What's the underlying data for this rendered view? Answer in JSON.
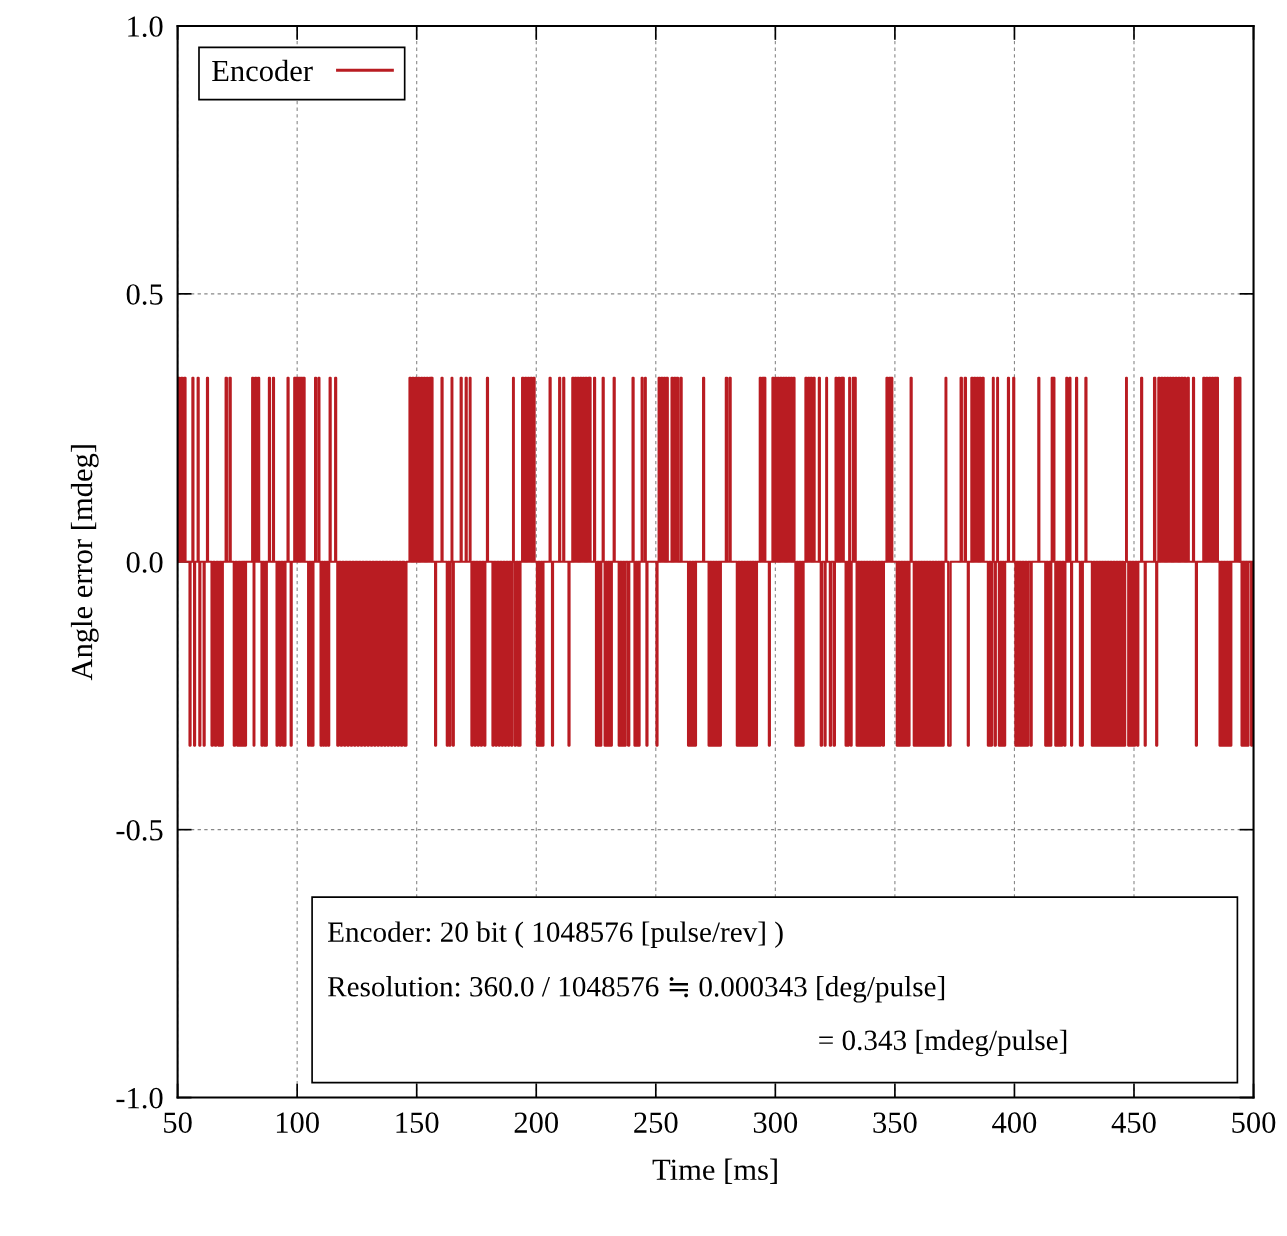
{
  "chart_data": {
    "type": "step",
    "xlabel": "Time [ms]",
    "ylabel": "Angle error [mdeg]",
    "xlim": [
      50,
      500
    ],
    "xticks": [
      50,
      100,
      150,
      200,
      250,
      300,
      350,
      400,
      450,
      500
    ],
    "ylim": [
      -1.0,
      1.0
    ],
    "yticks": [
      {
        "value": -1.0,
        "label": "-1.0"
      },
      {
        "value": -0.5,
        "label": "-0.5"
      },
      {
        "value": 0.0,
        "label": "0.0"
      },
      {
        "value": 0.5,
        "label": "0.5"
      },
      {
        "value": 1.0,
        "label": "1.0"
      }
    ],
    "grid": true,
    "legend": "top left",
    "line_style": "solid",
    "marker": "none",
    "annotations": [
      "Encoder: 20 bit ( 1048576 [pulse/rev] )",
      "Resolution: 360.0 / 1048576 ≒ 0.000343 [deg/pulse]",
      "= 0.343 [mdeg/pulse]"
    ],
    "series": [
      {
        "name": "Encoder",
        "color": "#b91c22",
        "x": [
          50,
          50.3,
          50.8,
          51.5,
          52,
          52.7,
          53.3,
          55,
          55.4,
          56.2,
          56.6,
          56.9,
          57.3,
          58.4,
          58.8,
          59.1,
          59.5,
          60.9,
          61.3,
          62.3,
          62.7,
          64.2,
          64.8,
          65.6,
          66.2,
          67,
          67.6,
          68.3,
          68.9,
          70.1,
          70.6,
          71.7,
          72.2,
          73.5,
          74.1,
          74.9,
          75.5,
          76.2,
          76.8,
          77.1,
          77.5,
          78.2,
          78.6,
          81.2,
          81.6,
          81.8,
          82.1,
          82.4,
          82.9,
          83.6,
          84.1,
          85.1,
          85.6,
          86.2,
          86.7,
          87,
          87.3,
          88.2,
          88.6,
          89.9,
          90.3,
          91.4,
          91.9,
          92.7,
          93.2,
          94,
          94.5,
          94.8,
          95.1,
          96,
          96.4,
          97.3,
          97.7,
          98.8,
          99.3,
          99.7,
          100.2,
          100.6,
          101.1,
          101.5,
          102,
          102.4,
          103.1,
          104.6,
          105.1,
          105.6,
          106.1,
          106.4,
          106.8,
          107.5,
          107.9,
          108.9,
          109.3,
          109.8,
          110.3,
          110.8,
          111.3,
          111.8,
          112.3,
          112.9,
          113.4,
          113.6,
          114,
          115.9,
          116.3,
          116.8,
          117.4,
          118.2,
          118.8,
          119.6,
          120.2,
          121,
          121.6,
          122.4,
          123,
          123.8,
          124.4,
          125.2,
          125.8,
          126.6,
          127.2,
          128,
          128.6,
          129.4,
          130,
          130.8,
          131.4,
          132.2,
          132.8,
          133.6,
          134.2,
          135,
          135.6,
          136.4,
          137,
          137.8,
          138.4,
          139.2,
          139.8,
          140.6,
          141.2,
          142,
          142.6,
          143.4,
          144,
          144.8,
          145.7,
          147,
          147.5,
          148.2,
          148.7,
          149.4,
          149.9,
          150.6,
          151.1,
          151.8,
          152.3,
          153,
          153.5,
          154.2,
          154.7,
          155.4,
          156,
          156.2,
          156.6,
          157.7,
          158.1,
          160.4,
          160.8,
          162.6,
          163.1,
          163.6,
          164.1,
          164.6,
          164.9,
          165.1,
          165.5,
          168.4,
          168.8,
          170.5,
          170.9,
          172.2,
          172.5,
          172.9,
          173.4,
          174.2,
          174.7,
          175.5,
          176,
          176.8,
          177.3,
          178.2,
          178.7,
          179.4,
          179.8,
          181.7,
          182.2,
          183,
          183.5,
          184.3,
          184.8,
          185.6,
          186.1,
          186.9,
          187.4,
          188.2,
          188.7,
          189.5,
          190,
          190.3,
          190.6,
          191,
          191.5,
          192.3,
          192.8,
          193,
          193.4,
          194.1,
          194.6,
          195.3,
          195.8,
          196.5,
          197,
          197.7,
          198.2,
          198.8,
          199.3,
          200.3,
          200.8,
          201.5,
          202,
          202.5,
          203,
          205.6,
          206,
          206.6,
          207,
          209.6,
          210,
          211.3,
          211.7,
          213.5,
          213.9,
          215.1,
          215.6,
          216.2,
          216.7,
          217.3,
          217.8,
          218.4,
          218.9,
          219.5,
          220,
          220.6,
          221.1,
          221.7,
          222.2,
          222.4,
          222.7,
          224.2,
          224.6,
          225,
          225.5,
          226.1,
          226.6,
          226.9,
          227.2,
          227.8,
          228.2,
          228.6,
          229.1,
          229.6,
          230.1,
          230.6,
          231.1,
          231.2,
          231.6,
          232.4,
          232.8,
          234.5,
          235,
          235.7,
          236.2,
          236.9,
          237.4,
          238.4,
          238.9,
          240.3,
          240.7,
          241.1,
          241.6,
          242.2,
          242.7,
          242.9,
          243.2,
          244.1,
          244.5,
          245.5,
          245.8,
          246.1,
          246.5,
          250.3,
          250.7,
          251.2,
          251.7,
          252.3,
          252.8,
          253.4,
          253.9,
          254.5,
          255,
          256.6,
          257.1,
          257.7,
          258.2,
          258.8,
          259.3,
          260.3,
          260.8,
          263.5,
          264,
          264.7,
          265.2,
          265.8,
          266.3,
          266.5,
          266.8,
          269.8,
          270.2,
          272.1,
          272.6,
          273.3,
          273.8,
          274.5,
          275,
          275.7,
          276.2,
          276.8,
          277.2,
          279.3,
          279.8,
          280.8,
          281.3,
          283.9,
          284.4,
          285.1,
          285.6,
          286.3,
          286.8,
          287.5,
          288,
          288.7,
          289.2,
          289.9,
          290.4,
          291.1,
          291.6,
          291.9,
          292.3,
          293.5,
          294,
          294.6,
          295.1,
          295.4,
          295.8,
          297.3,
          297.7,
          298.8,
          299.3,
          299.9,
          300.4,
          301,
          301.5,
          302.1,
          302.6,
          303.2,
          303.7,
          304.3,
          304.8,
          305.4,
          305.9,
          306.5,
          307,
          307.6,
          308,
          308.4,
          308.9,
          309.5,
          310,
          310.6,
          311.1,
          311.4,
          311.8,
          312.6,
          313.1,
          313.7,
          314.2,
          314.8,
          315.3,
          316,
          316.4,
          318.2,
          318.6,
          319,
          319.5,
          320.6,
          321,
          321.3,
          321.6,
          322.8,
          323.3,
          324.4,
          324.9,
          325.2,
          325.7,
          326.4,
          326.9,
          327.6,
          328.1,
          328.3,
          328.6,
          329.4,
          329.9,
          330.3,
          330.7,
          330.9,
          331.2,
          331.5,
          331.9,
          332.4,
          332.8,
          333.2,
          333.6,
          334,
          334.5,
          335.2,
          335.7,
          336.4,
          336.9,
          337.6,
          338.1,
          338.8,
          339.3,
          340,
          340.5,
          341.2,
          341.7,
          342.4,
          342.9,
          343.6,
          344.1,
          344.9,
          345.4,
          346.5,
          347,
          347.6,
          348.1,
          348.5,
          348.9,
          350.8,
          351.3,
          352,
          352.5,
          353.2,
          353.7,
          354.4,
          354.9,
          355.6,
          356.1,
          356.6,
          357,
          357.9,
          358.4,
          359.1,
          359.6,
          360.3,
          360.8,
          361.5,
          362,
          362.7,
          363.2,
          363.9,
          364.4,
          365.1,
          365.6,
          366.3,
          366.8,
          367.5,
          368,
          368.7,
          369.2,
          369.9,
          370.4,
          371.2,
          371.5,
          372.3,
          373.3,
          377.5,
          378,
          379.2,
          379.7,
          380.5,
          380.9,
          382,
          382.5,
          383.1,
          383.6,
          384.3,
          384.8,
          385.4,
          385.9,
          386.6,
          387.1,
          388.9,
          389.4,
          390.1,
          390.6,
          391,
          391.3,
          391.7,
          392.2,
          392.8,
          393.1,
          393.5,
          394,
          394.6,
          395.1,
          395.6,
          396.1,
          397.3,
          397.7,
          399.5,
          399.9,
          400.4,
          400.9,
          401.6,
          402.1,
          402.8,
          403.3,
          404,
          404.5,
          405.2,
          405.7,
          406.7,
          407.2,
          410,
          410.4,
          412.9,
          413.4,
          414,
          414.5,
          415,
          415.4,
          415.6,
          416,
          416.3,
          416.7,
          417.1,
          417.6,
          418.3,
          418.8,
          419.5,
          420,
          420.8,
          421.3,
          421.7,
          422.1,
          423,
          423.4,
          423.7,
          424.1,
          425.8,
          426.2,
          427.4,
          427.9,
          428.2,
          428.6,
          429.7,
          430.1,
          432.4,
          432.9,
          433.6,
          434.1,
          434.8,
          435.3,
          436,
          436.5,
          437.2,
          437.7,
          438.4,
          438.9,
          439.6,
          440.1,
          440.8,
          441.3,
          442,
          442.5,
          443.2,
          443.7,
          444.4,
          444.9,
          445.6,
          446.3,
          446.7,
          447,
          447.6,
          448.1,
          448.8,
          449.3,
          450,
          450.5,
          451.3,
          451.8,
          453,
          453.4,
          454.5,
          454.9,
          458.4,
          458.9,
          459.3,
          459.7,
          460.2,
          460.7,
          461.4,
          461.9,
          462.6,
          463.1,
          463.8,
          464.3,
          465,
          465.5,
          466.2,
          466.7,
          467.4,
          467.9,
          468.6,
          469.1,
          469.8,
          470.3,
          471,
          471.5,
          472.4,
          472.9,
          474.7,
          475.1,
          475.9,
          476.3,
          479,
          479.5,
          480.2,
          480.7,
          481.4,
          481.9,
          482.6,
          483.1,
          483.8,
          484.3,
          484.7,
          485.1,
          485.8,
          486.3,
          487,
          487.5,
          488.2,
          488.7,
          489.4,
          489.9,
          490.3,
          490.7,
          492.2,
          492.7,
          493.4,
          493.9,
          494.1,
          494.5,
          495,
          495.5,
          496.2,
          496.7,
          497.4,
          497.9,
          499,
          499.5,
          500
        ],
        "values": [
          0,
          0.343,
          0,
          0.343,
          0,
          0.343,
          0,
          -0.343,
          0,
          0.343,
          0,
          -0.343,
          0,
          0.343,
          0,
          -0.343,
          0,
          -0.343,
          0,
          0.343,
          0,
          -0.343,
          0,
          -0.343,
          0,
          -0.343,
          0,
          -0.343,
          0,
          0.343,
          0,
          0.343,
          0,
          -0.343,
          0,
          -0.343,
          0,
          -0.343,
          0,
          -0.343,
          0,
          -0.343,
          0,
          0.343,
          0,
          -0.343,
          0,
          0.343,
          0,
          0.343,
          0,
          -0.343,
          0,
          -0.343,
          0,
          -0.343,
          0,
          0.343,
          0,
          0.343,
          0,
          -0.343,
          0,
          -0.343,
          0,
          -0.343,
          0,
          -0.343,
          0,
          0.343,
          0,
          -0.343,
          0,
          0.343,
          0,
          0.343,
          0,
          0.343,
          0,
          0.343,
          0,
          0.343,
          0,
          -0.343,
          0,
          -0.343,
          0,
          -0.343,
          0,
          0.343,
          0,
          0.343,
          0,
          -0.343,
          0,
          -0.343,
          0,
          -0.343,
          0,
          -0.343,
          0,
          0.343,
          0,
          0.343,
          0,
          -0.343,
          0,
          -0.343,
          0,
          -0.343,
          0,
          -0.343,
          0,
          -0.343,
          0,
          -0.343,
          0,
          -0.343,
          0,
          -0.343,
          0,
          -0.343,
          0,
          -0.343,
          0,
          -0.343,
          0,
          -0.343,
          0,
          -0.343,
          0,
          -0.343,
          0,
          -0.343,
          0,
          -0.343,
          0,
          -0.343,
          0,
          -0.343,
          0,
          -0.343,
          0,
          -0.343,
          0,
          -0.343,
          0,
          0.343,
          0,
          0.343,
          0,
          0.343,
          0,
          0.343,
          0,
          0.343,
          0,
          0.343,
          0,
          0.343,
          0,
          0.343,
          0,
          0.343,
          0,
          -0.343,
          0,
          0.343,
          0,
          -0.343,
          0,
          -0.343,
          0,
          0.343,
          0,
          -0.343,
          0,
          0.343,
          0,
          0.343,
          0,
          0.343,
          0,
          -0.343,
          0,
          -0.343,
          0,
          -0.343,
          0,
          -0.343,
          0,
          -0.343,
          0,
          0.343,
          0,
          -0.343,
          0,
          -0.343,
          0,
          -0.343,
          0,
          -0.343,
          0,
          -0.343,
          0,
          -0.343,
          0,
          -0.343,
          0,
          0.343,
          0,
          -0.343,
          0,
          -0.343,
          0,
          -0.343,
          0,
          0.343,
          0,
          0.343,
          0,
          0.343,
          0,
          0.343,
          0,
          0.343,
          0,
          -0.343,
          0,
          -0.343,
          0,
          -0.343,
          0,
          0.343,
          0,
          -0.343,
          0,
          0.343,
          0,
          0.343,
          0,
          -0.343,
          0,
          0.343,
          0,
          0.343,
          0,
          0.343,
          0,
          0.343,
          0,
          0.343,
          0,
          0.343,
          0,
          0.343,
          0,
          0.343,
          0,
          0.343,
          0,
          -0.343,
          0,
          -0.343,
          0,
          -0.343,
          0,
          0.343,
          0,
          -0.343,
          0,
          -0.343,
          0,
          -0.343,
          0,
          -0.343,
          0,
          0.343,
          0,
          -0.343,
          0,
          -0.343,
          0,
          -0.343,
          0,
          -0.343,
          0,
          0.343,
          0,
          -0.343,
          0,
          -0.343,
          0,
          -0.343,
          0,
          0.343,
          0,
          0.343,
          0,
          -0.343,
          0,
          -0.343,
          0,
          0.343,
          0,
          0.343,
          0,
          0.343,
          0,
          0.343,
          0,
          0.343,
          0,
          0.343,
          0,
          0.343,
          0,
          0.343,
          0,
          -0.343,
          0,
          -0.343,
          0,
          -0.343,
          0,
          -0.343,
          0,
          0.343,
          0,
          -0.343,
          0,
          -0.343,
          0,
          -0.343,
          0,
          -0.343,
          0,
          -0.343,
          0,
          0.343,
          0,
          0.343,
          0,
          -0.343,
          0,
          -0.343,
          0,
          -0.343,
          0,
          -0.343,
          0,
          -0.343,
          0,
          -0.343,
          0,
          -0.343,
          0,
          -0.343,
          0,
          0.343,
          0,
          0.343,
          0,
          0.343,
          0,
          -0.343,
          0,
          0.343,
          0,
          0.343,
          0,
          0.343,
          0,
          0.343,
          0,
          0.343,
          0,
          0.343,
          0,
          0.343,
          0,
          0.343,
          0,
          0.343,
          0,
          -0.343,
          0,
          -0.343,
          0,
          -0.343,
          0,
          -0.343,
          0,
          0.343,
          0,
          0.343,
          0,
          0.343,
          0,
          0.343,
          0,
          0.343,
          0,
          -0.343,
          0,
          -0.343,
          0,
          0.343,
          0,
          -0.343,
          0,
          -0.343,
          0,
          0.343,
          0,
          0.343,
          0,
          0.343,
          0,
          0.343,
          0,
          -0.343,
          0,
          -0.343,
          0,
          0.343,
          0,
          -0.343,
          0,
          0.343,
          0,
          0.343,
          0,
          -0.343,
          0,
          -0.343,
          0,
          -0.343,
          0,
          -0.343,
          0,
          -0.343,
          0,
          -0.343,
          0,
          -0.343,
          0,
          -0.343,
          0,
          -0.343,
          0,
          -0.343,
          0,
          0.343,
          0,
          0.343,
          0,
          0.343,
          0,
          -0.343,
          0,
          -0.343,
          0,
          -0.343,
          0,
          -0.343,
          0,
          -0.343,
          0,
          0.343,
          0,
          -0.343,
          0,
          -0.343,
          0,
          -0.343,
          0,
          -0.343,
          0,
          -0.343,
          0,
          -0.343,
          0,
          -0.343,
          0,
          -0.343,
          0,
          -0.343,
          0,
          -0.343,
          0,
          -0.343,
          0,
          0.343,
          0,
          -0.343,
          0,
          0.343,
          0,
          0.343,
          0,
          -0.343,
          0,
          0.343,
          0,
          0.343,
          0,
          0.343,
          0,
          0.343,
          0,
          0.343,
          0,
          -0.343,
          0,
          -0.343,
          0,
          0.343,
          0,
          -0.343,
          0,
          0.343,
          0,
          -0.343,
          0,
          -0.343,
          0,
          -0.343,
          0,
          0.343,
          0,
          0.343,
          0,
          -0.343,
          0,
          -0.343,
          0,
          -0.343,
          0,
          -0.343,
          0,
          -0.343,
          0,
          -0.343,
          0,
          0.343,
          0,
          -0.343,
          0,
          -0.343,
          0,
          -0.343,
          0,
          0.343,
          0,
          0.343,
          0,
          -0.343,
          0,
          -0.343,
          0,
          -0.343,
          0,
          -0.343,
          0,
          0.343,
          0,
          0.343,
          0,
          -0.343,
          0,
          0.343,
          0,
          -0.343,
          0,
          -0.343,
          0,
          0.343,
          0,
          -0.343,
          0,
          -0.343,
          0,
          -0.343,
          0,
          -0.343,
          0,
          -0.343,
          0,
          -0.343,
          0,
          -0.343,
          0,
          -0.343,
          0,
          -0.343,
          0,
          -0.343,
          0,
          -0.343,
          0,
          -0.343,
          0,
          0.343,
          0,
          -0.343,
          0,
          -0.343,
          0,
          -0.343,
          0,
          -0.343,
          0,
          0.343,
          0,
          -0.343,
          0,
          0.343,
          0,
          -0.343,
          0,
          0.343,
          0,
          0.343,
          0,
          0.343,
          0,
          0.343,
          0,
          0.343,
          0,
          0.343,
          0,
          0.343,
          0,
          0.343,
          0,
          0.343,
          0,
          0.343,
          0,
          0.343,
          0,
          0.343,
          0,
          -0.343,
          0,
          0.343,
          0,
          0.343,
          0,
          0.343,
          0,
          0.343,
          0,
          0.343,
          0,
          0.343,
          0,
          -0.343,
          0,
          -0.343,
          0,
          -0.343,
          0,
          -0.343,
          0,
          -0.343,
          0,
          0.343,
          0,
          0.343,
          0,
          0.343,
          0,
          -0.343,
          0,
          -0.343,
          0,
          -0.343,
          0,
          -0.343,
          0,
          0
        ]
      }
    ]
  }
}
